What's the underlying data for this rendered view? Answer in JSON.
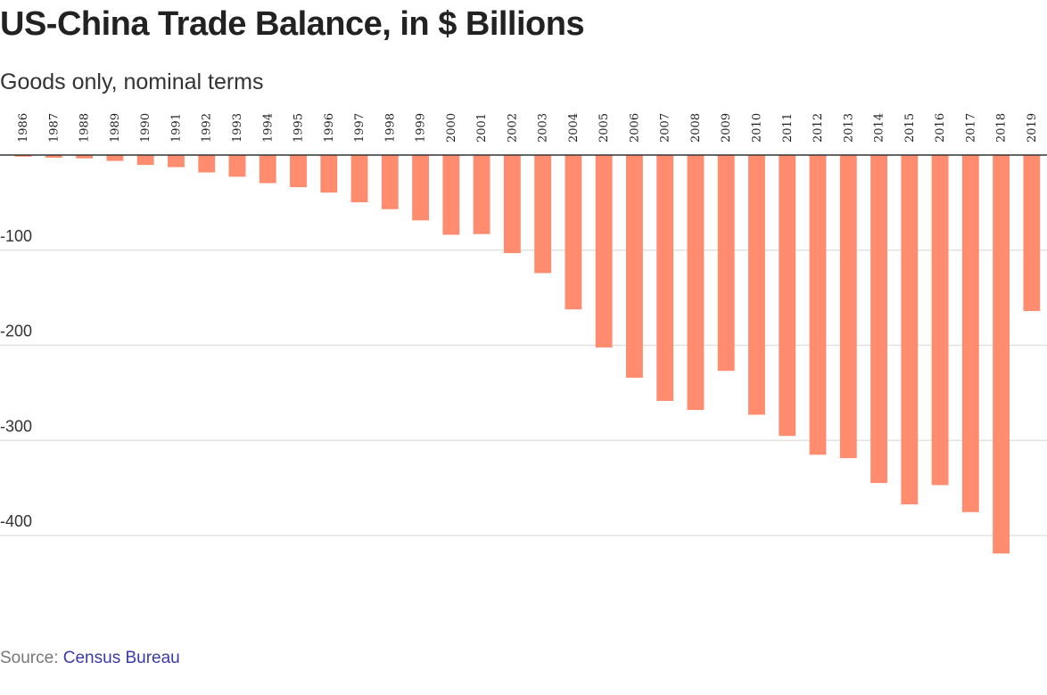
{
  "title": "US-China Trade Balance, in $ Billions",
  "subtitle": "Goods only, nominal terms",
  "source": {
    "prefix": "Source: ",
    "link_text": "Census Bureau"
  },
  "colors": {
    "bar": "#ff8c6e",
    "gridline": "#dddddd",
    "zero_line": "#333333"
  },
  "chart_data": {
    "type": "bar",
    "title": "US-China Trade Balance, in $ Billions",
    "subtitle": "Goods only, nominal terms",
    "categories": [
      "1986",
      "1987",
      "1988",
      "1989",
      "1990",
      "1991",
      "1992",
      "1993",
      "1994",
      "1995",
      "1996",
      "1997",
      "1998",
      "1999",
      "2000",
      "2001",
      "2002",
      "2003",
      "2004",
      "2005",
      "2006",
      "2007",
      "2008",
      "2009",
      "2010",
      "2011",
      "2012",
      "2013",
      "2014",
      "2015",
      "2016",
      "2017",
      "2018",
      "2019"
    ],
    "values": [
      -1.7,
      -2.8,
      -3.5,
      -6.2,
      -10.4,
      -12.7,
      -18.3,
      -22.8,
      -29.5,
      -33.8,
      -39.5,
      -49.7,
      -56.9,
      -68.7,
      -83.8,
      -83.1,
      -103.1,
      -124.1,
      -162.3,
      -202.3,
      -234.1,
      -258.5,
      -268.0,
      -226.9,
      -273.0,
      -295.3,
      -315.1,
      -318.7,
      -344.8,
      -367.3,
      -347.0,
      -375.4,
      -418.9,
      -164.0
    ],
    "yticks": [
      -400,
      -300,
      -200,
      -100
    ],
    "ylim": [
      -440,
      0
    ],
    "xlabel": "",
    "ylabel": "",
    "x_axis_position": "top",
    "grid": true
  }
}
